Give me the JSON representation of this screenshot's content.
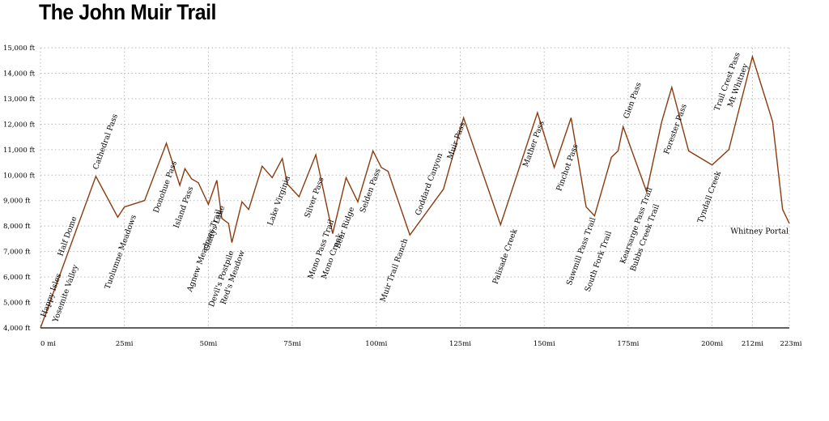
{
  "chart_data": {
    "type": "line",
    "title": "The John Muir Trail",
    "color": "#8b3a0e",
    "ylim": [
      4000,
      15000
    ],
    "xlim": [
      0,
      223
    ],
    "yticks": [
      {
        "v": 4000,
        "label": "4,000 ft"
      },
      {
        "v": 5000,
        "label": "5,000 ft"
      },
      {
        "v": 6000,
        "label": "6,000 ft"
      },
      {
        "v": 7000,
        "label": "7,000 ft"
      },
      {
        "v": 8000,
        "label": "8,000 ft"
      },
      {
        "v": 9000,
        "label": "9,000 ft"
      },
      {
        "v": 10000,
        "label": "10,000 ft"
      },
      {
        "v": 11000,
        "label": "11,000 ft"
      },
      {
        "v": 12000,
        "label": "12,000 ft"
      },
      {
        "v": 13000,
        "label": "13,000 ft"
      },
      {
        "v": 14000,
        "label": "14,000 ft"
      },
      {
        "v": 15000,
        "label": "15,000 ft"
      }
    ],
    "xticks": [
      {
        "v": 0,
        "label": "0 mi"
      },
      {
        "v": 25,
        "label": "25mi"
      },
      {
        "v": 50,
        "label": "50mi"
      },
      {
        "v": 75,
        "label": "75mi"
      },
      {
        "v": 100,
        "label": "100mi"
      },
      {
        "v": 125,
        "label": "125mi"
      },
      {
        "v": 150,
        "label": "150mi"
      },
      {
        "v": 175,
        "label": "175mi"
      },
      {
        "v": 200,
        "label": "200mi"
      },
      {
        "v": 212,
        "label": "212mi"
      },
      {
        "v": 223,
        "label": "223mi"
      }
    ],
    "points": [
      [
        0,
        4000
      ],
      [
        16.5,
        9950
      ],
      [
        23,
        8350
      ],
      [
        25,
        8750
      ],
      [
        31,
        9000
      ],
      [
        37.5,
        11250
      ],
      [
        41.5,
        9600
      ],
      [
        43,
        10250
      ],
      [
        45,
        9850
      ],
      [
        47,
        9700
      ],
      [
        50,
        8850
      ],
      [
        52.5,
        9800
      ],
      [
        54,
        8300
      ],
      [
        56,
        8100
      ],
      [
        57,
        7350
      ],
      [
        60,
        8950
      ],
      [
        62,
        8650
      ],
      [
        66,
        10350
      ],
      [
        69,
        9900
      ],
      [
        72,
        10650
      ],
      [
        73.5,
        9650
      ],
      [
        77,
        9150
      ],
      [
        82,
        10800
      ],
      [
        87,
        7700
      ],
      [
        91,
        9900
      ],
      [
        94.5,
        8950
      ],
      [
        99,
        10950
      ],
      [
        101.5,
        10300
      ],
      [
        103.5,
        10150
      ],
      [
        110,
        7650
      ],
      [
        120,
        9450
      ],
      [
        126,
        12250
      ],
      [
        137,
        8050
      ],
      [
        148,
        12450
      ],
      [
        153,
        10300
      ],
      [
        158,
        12250
      ],
      [
        162.5,
        8750
      ],
      [
        165,
        8400
      ],
      [
        170,
        10700
      ],
      [
        172,
        10950
      ],
      [
        173.5,
        11900
      ],
      [
        180.5,
        9350
      ],
      [
        185,
        12100
      ],
      [
        188,
        13450
      ],
      [
        193,
        10950
      ],
      [
        200,
        10400
      ],
      [
        205,
        11000
      ],
      [
        212,
        14650
      ],
      [
        218,
        12100
      ],
      [
        221,
        8650
      ],
      [
        223,
        8100
      ]
    ],
    "waypoints": [
      {
        "name": "Happy Isles",
        "x": 1.5,
        "y": 4400,
        "dir": "up"
      },
      {
        "name": "Yosemite Valley",
        "x": 5,
        "y": 4200,
        "dir": "up"
      },
      {
        "name": "Half Dome",
        "x": 6.5,
        "y": 6800,
        "dir": "up"
      },
      {
        "name": "Cathedral Pass",
        "x": 17,
        "y": 10200,
        "dir": "up"
      },
      {
        "name": "Tuolumne Meadows",
        "x": 20.5,
        "y": 5500,
        "dir": "up"
      },
      {
        "name": "Donohue Pass",
        "x": 35,
        "y": 8500,
        "dir": "up"
      },
      {
        "name": "Island Pass",
        "x": 41,
        "y": 7900,
        "dir": "up"
      },
      {
        "name": "Agnew Meadows Trail",
        "x": 45,
        "y": 5400,
        "dir": "up"
      },
      {
        "name": "Gladys Lake",
        "x": 50,
        "y": 7000,
        "dir": "up"
      },
      {
        "name": "Devil's Postpile",
        "x": 51.5,
        "y": 4800,
        "dir": "up"
      },
      {
        "name": "Red's Meadow",
        "x": 55,
        "y": 4900,
        "dir": "up"
      },
      {
        "name": "Lake Virginia",
        "x": 69,
        "y": 8000,
        "dir": "up"
      },
      {
        "name": "Silver Pass",
        "x": 80,
        "y": 8300,
        "dir": "up"
      },
      {
        "name": "Mono Pass Trail",
        "x": 81,
        "y": 5900,
        "dir": "up"
      },
      {
        "name": "Mono Creek",
        "x": 85,
        "y": 5900,
        "dir": "up"
      },
      {
        "name": "Bear Ridge",
        "x": 89,
        "y": 7100,
        "dir": "up"
      },
      {
        "name": "Selden Pass",
        "x": 96.5,
        "y": 8500,
        "dir": "up"
      },
      {
        "name": "Muir Trail Ranch",
        "x": 102.5,
        "y": 5000,
        "dir": "up"
      },
      {
        "name": "Goddard Canyon",
        "x": 113,
        "y": 8400,
        "dir": "up"
      },
      {
        "name": "Muir Pass",
        "x": 122.5,
        "y": 10600,
        "dir": "up"
      },
      {
        "name": "Palisade Creek",
        "x": 136,
        "y": 5700,
        "dir": "up"
      },
      {
        "name": "Mather Pass",
        "x": 145,
        "y": 10300,
        "dir": "up"
      },
      {
        "name": "Pinchot Pass",
        "x": 155,
        "y": 9350,
        "dir": "up"
      },
      {
        "name": "Sawmill Pass Trail",
        "x": 158,
        "y": 5650,
        "dir": "up"
      },
      {
        "name": "South Fork Trail",
        "x": 163.5,
        "y": 5400,
        "dir": "up"
      },
      {
        "name": "Glen Pass",
        "x": 175,
        "y": 12200,
        "dir": "up"
      },
      {
        "name": "Kearsarge Pass Trail",
        "x": 174,
        "y": 6500,
        "dir": "up"
      },
      {
        "name": "Bubbs Creek Trail",
        "x": 177,
        "y": 6200,
        "dir": "up"
      },
      {
        "name": "Forester Pass",
        "x": 187,
        "y": 10800,
        "dir": "up"
      },
      {
        "name": "Tyndall Creek",
        "x": 197,
        "y": 8100,
        "dir": "up"
      },
      {
        "name": "Trail Crest Pass",
        "x": 202,
        "y": 12500,
        "dir": "up"
      },
      {
        "name": "Mt Whitney",
        "x": 206,
        "y": 12650,
        "dir": "up"
      },
      {
        "name": "Whitney Portal",
        "x": 223,
        "y": 7700,
        "dir": "end"
      }
    ]
  }
}
